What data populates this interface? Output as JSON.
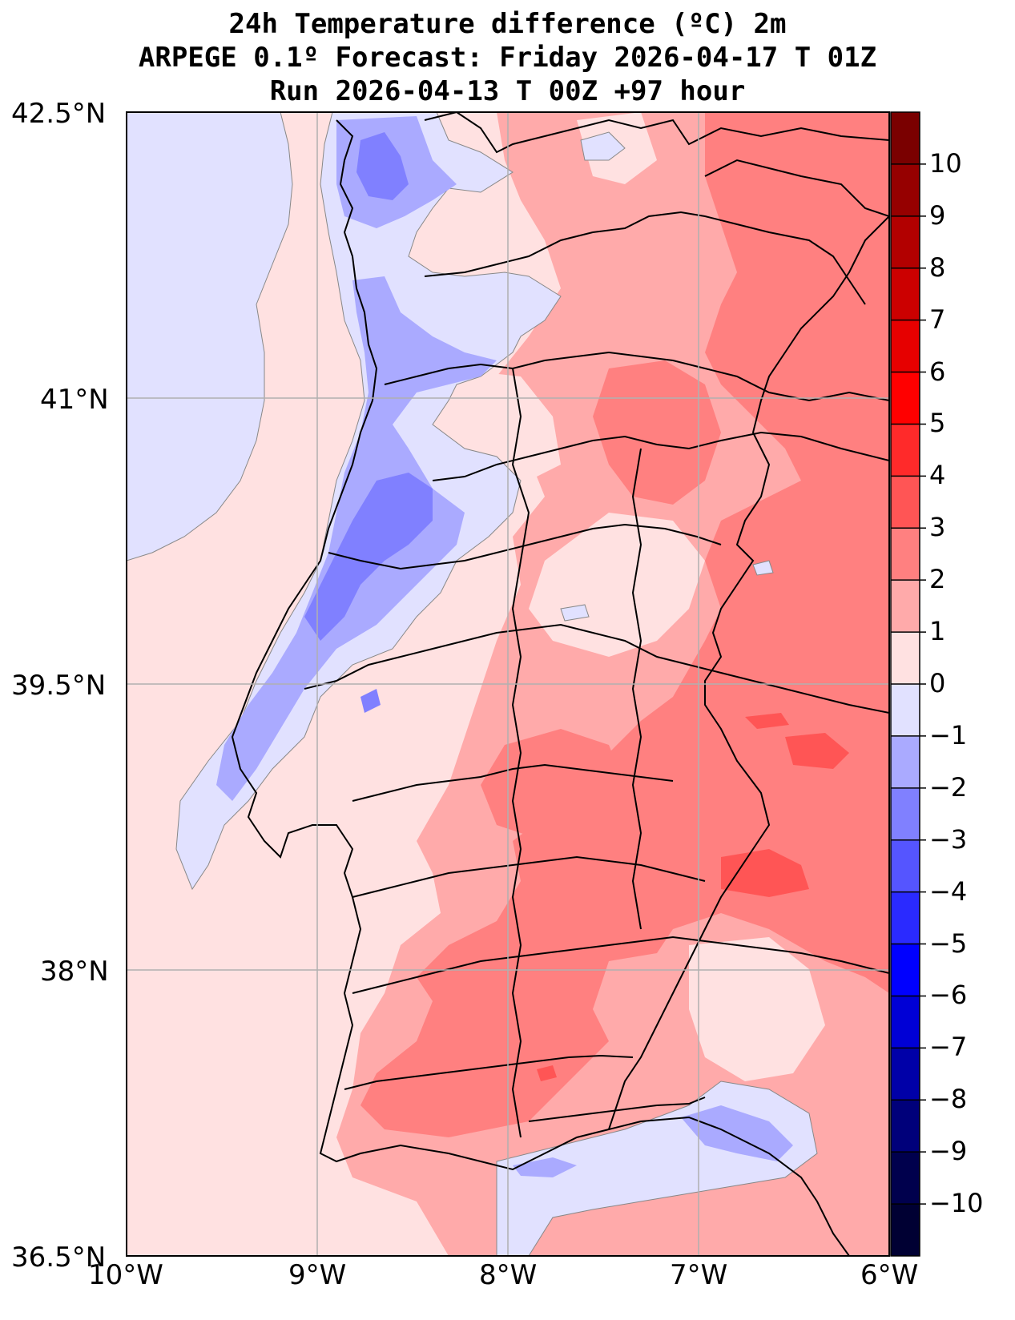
{
  "title": {
    "line1": "24h Temperature difference (ºC) 2m",
    "line2": "ARPEGE 0.1º Forecast: Friday 2026-04-17 T 01Z",
    "line3": "Run 2026-04-13 T 00Z +97 hour"
  },
  "axes": {
    "lat_ticks": [
      "42.5°N",
      "41°N",
      "39.5°N",
      "38°N",
      "36.5°N"
    ],
    "lon_ticks": [
      "10°W",
      "9°W",
      "8°W",
      "7°W",
      "6°W"
    ]
  },
  "colorbar": {
    "ticks": [
      "10",
      "9",
      "8",
      "7",
      "6",
      "5",
      "4",
      "3",
      "2",
      "1",
      "0",
      "−1",
      "−2",
      "−3",
      "−4",
      "−5",
      "−6",
      "−7",
      "−8",
      "−9",
      "−10"
    ],
    "colors_top_to_bottom": [
      "#7a0000",
      "#960000",
      "#b20000",
      "#cc0000",
      "#e60000",
      "#ff0000",
      "#ff2a2a",
      "#ff5555",
      "#ff8080",
      "#ffaaaa",
      "#ffe1e1",
      "#e1e1ff",
      "#aaaaff",
      "#8080ff",
      "#5555ff",
      "#2a2aff",
      "#0000ff",
      "#0000d6",
      "#0000a8",
      "#00007a",
      "#00004d",
      "#000033"
    ]
  },
  "map_colors": {
    "pos0": "#ffe1e1",
    "pos1": "#ffaaaa",
    "pos2": "#ff8080",
    "pos3": "#ff5555",
    "neg0": "#e1e1ff",
    "neg1": "#aaaaff",
    "neg2": "#8080ff",
    "neg3": "#5555ff"
  }
}
